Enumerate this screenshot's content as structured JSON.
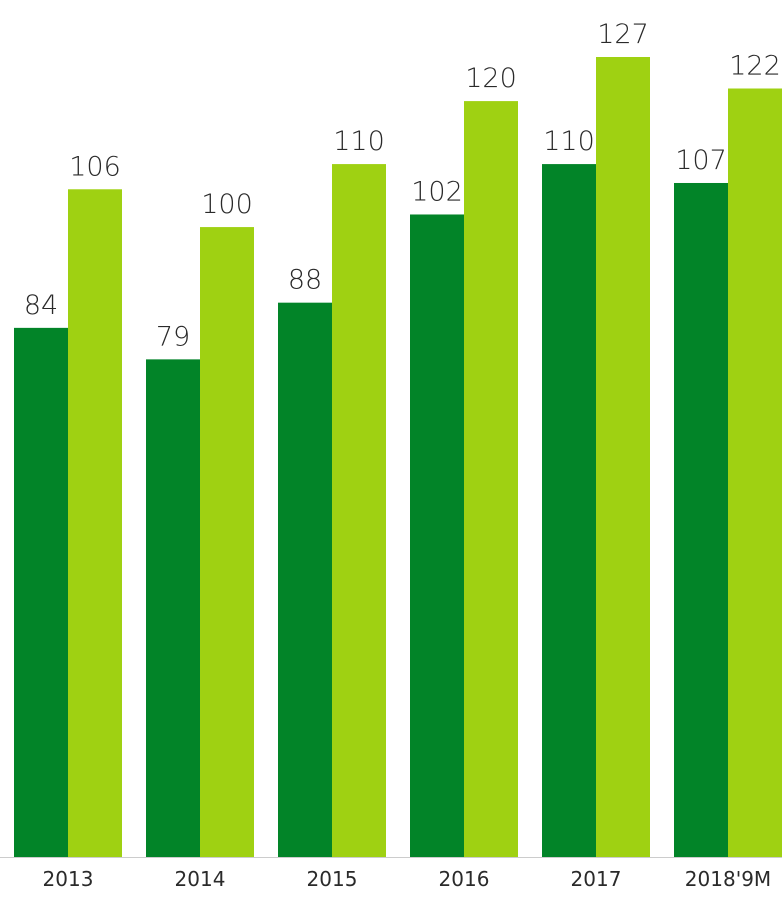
{
  "chart_data": {
    "type": "bar",
    "title": "",
    "xlabel": "",
    "ylabel": "",
    "categories": [
      "2013",
      "2014",
      "2015",
      "2016",
      "2017",
      "2018'9M"
    ],
    "series": [
      {
        "values": [
          84,
          79,
          88,
          102,
          110,
          107
        ],
        "color": "#028428"
      },
      {
        "values": [
          106,
          100,
          110,
          120,
          127,
          122
        ],
        "color": "#9fd112"
      }
    ],
    "ylim": [
      0,
      127
    ],
    "grid": false,
    "legend": "none",
    "axis_line_color": "#cccccc"
  }
}
